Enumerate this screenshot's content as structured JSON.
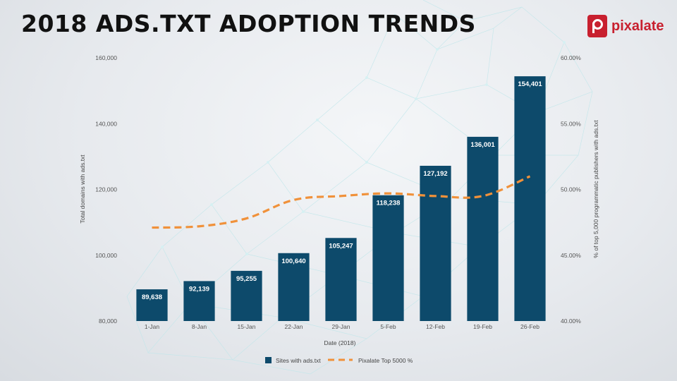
{
  "header": {
    "title": "2018 ADS.TXT ADOPTION TRENDS",
    "logo_text": "pixalate"
  },
  "colors": {
    "bar": "#0d4a6b",
    "line": "#f0913a",
    "brand": "#c8202f"
  },
  "chart_data": {
    "type": "bar",
    "categories": [
      "1-Jan",
      "8-Jan",
      "15-Jan",
      "22-Jan",
      "29-Jan",
      "5-Feb",
      "12-Feb",
      "19-Feb",
      "26-Feb"
    ],
    "series": [
      {
        "name": "Sites with ads.txt",
        "type": "bar",
        "axis": "left",
        "values": [
          89638,
          92139,
          95255,
          100640,
          105247,
          118238,
          127192,
          136001,
          154401
        ]
      },
      {
        "name": "Pixalate Top 5000 %",
        "type": "line",
        "style": "dashed",
        "axis": "right",
        "values": [
          47.1,
          47.2,
          47.8,
          49.2,
          49.5,
          49.7,
          49.5,
          49.5,
          51.0
        ]
      }
    ],
    "data_labels": [
      "89,638",
      "92,139",
      "95,255",
      "100,640",
      "105,247",
      "118,238",
      "127,192",
      "136,001",
      "154,401"
    ],
    "xlabel": "Date (2018)",
    "ylabel": "Total domains with ads.txt",
    "y2label": "% of top 5,000 programmatic publishers with ads.txt",
    "ylim": [
      80000,
      160000
    ],
    "y2lim": [
      40,
      60
    ],
    "yticks": [
      "80,000",
      "100,000",
      "120,000",
      "140,000",
      "160,000"
    ],
    "y2ticks": [
      "40.00%",
      "45.00%",
      "50.00%",
      "55.00%",
      "60.00%"
    ],
    "grid": false,
    "legend_position": "bottom"
  }
}
